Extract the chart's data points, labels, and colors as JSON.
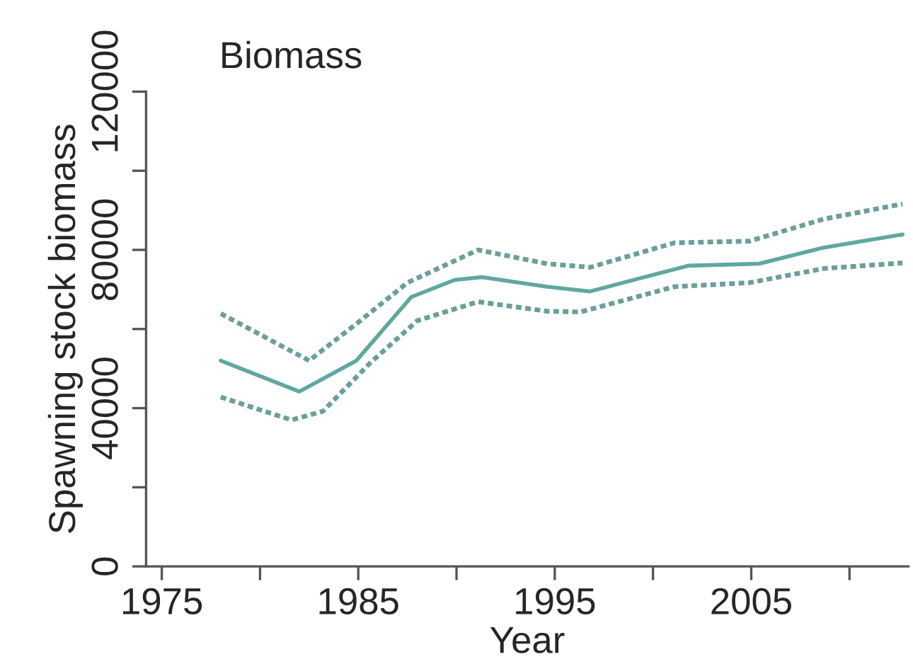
{
  "chart_data": {
    "type": "line",
    "title": "Biomass",
    "xlabel": "Year",
    "ylabel": "Spawning stock biomass",
    "xlim": [
      1974.2,
      2013
    ],
    "ylim": [
      0,
      120000
    ],
    "xticks": [
      1975,
      {
        "value": 1980,
        "label": null
      },
      1985,
      {
        "value": 1990,
        "label": null
      },
      1995,
      {
        "value": 2000,
        "label": null
      },
      2005,
      {
        "value": 2010,
        "label": null
      }
    ],
    "yticks": [
      0,
      {
        "value": 20000,
        "label": null
      },
      40000,
      {
        "value": 60000,
        "label": null
      },
      80000,
      {
        "value": 100000,
        "label": null
      },
      120000
    ],
    "grid": false,
    "series": [
      {
        "color": "#5fa8a0",
        "line_style": "solid",
        "x": [
          1978.0,
          1982.0,
          1984.9,
          1987.7,
          1989.9,
          1991.3,
          1994.6,
          1996.8,
          1999.4,
          2001.8,
          2005.4,
          2008.7,
          2012.7
        ],
        "values": [
          52000,
          44200,
          52000,
          68100,
          72400,
          73100,
          70700,
          69500,
          72900,
          76000,
          76500,
          80600,
          83900
        ]
      },
      {
        "color": "#6a9f9a",
        "line_style": "dotted",
        "x": [
          1978.0,
          1982.5,
          1985.1,
          1987.5,
          1991.1,
          1994.6,
          1996.8,
          2001.1,
          2004.9,
          2008.7,
          2012.7
        ],
        "values": [
          63900,
          52000,
          62100,
          71700,
          80000,
          76500,
          75600,
          81800,
          82200,
          87800,
          91600
        ]
      },
      {
        "color": "#6a9f9a",
        "line_style": "dotted",
        "x": [
          1978.0,
          1981.6,
          1983.2,
          1985.6,
          1988.0,
          1991.1,
          1994.6,
          1996.3,
          2001.1,
          2004.9,
          2008.7,
          2012.7
        ],
        "values": [
          42800,
          37000,
          39200,
          51400,
          62100,
          66900,
          64500,
          64300,
          70700,
          71700,
          75300,
          76700
        ]
      }
    ]
  }
}
